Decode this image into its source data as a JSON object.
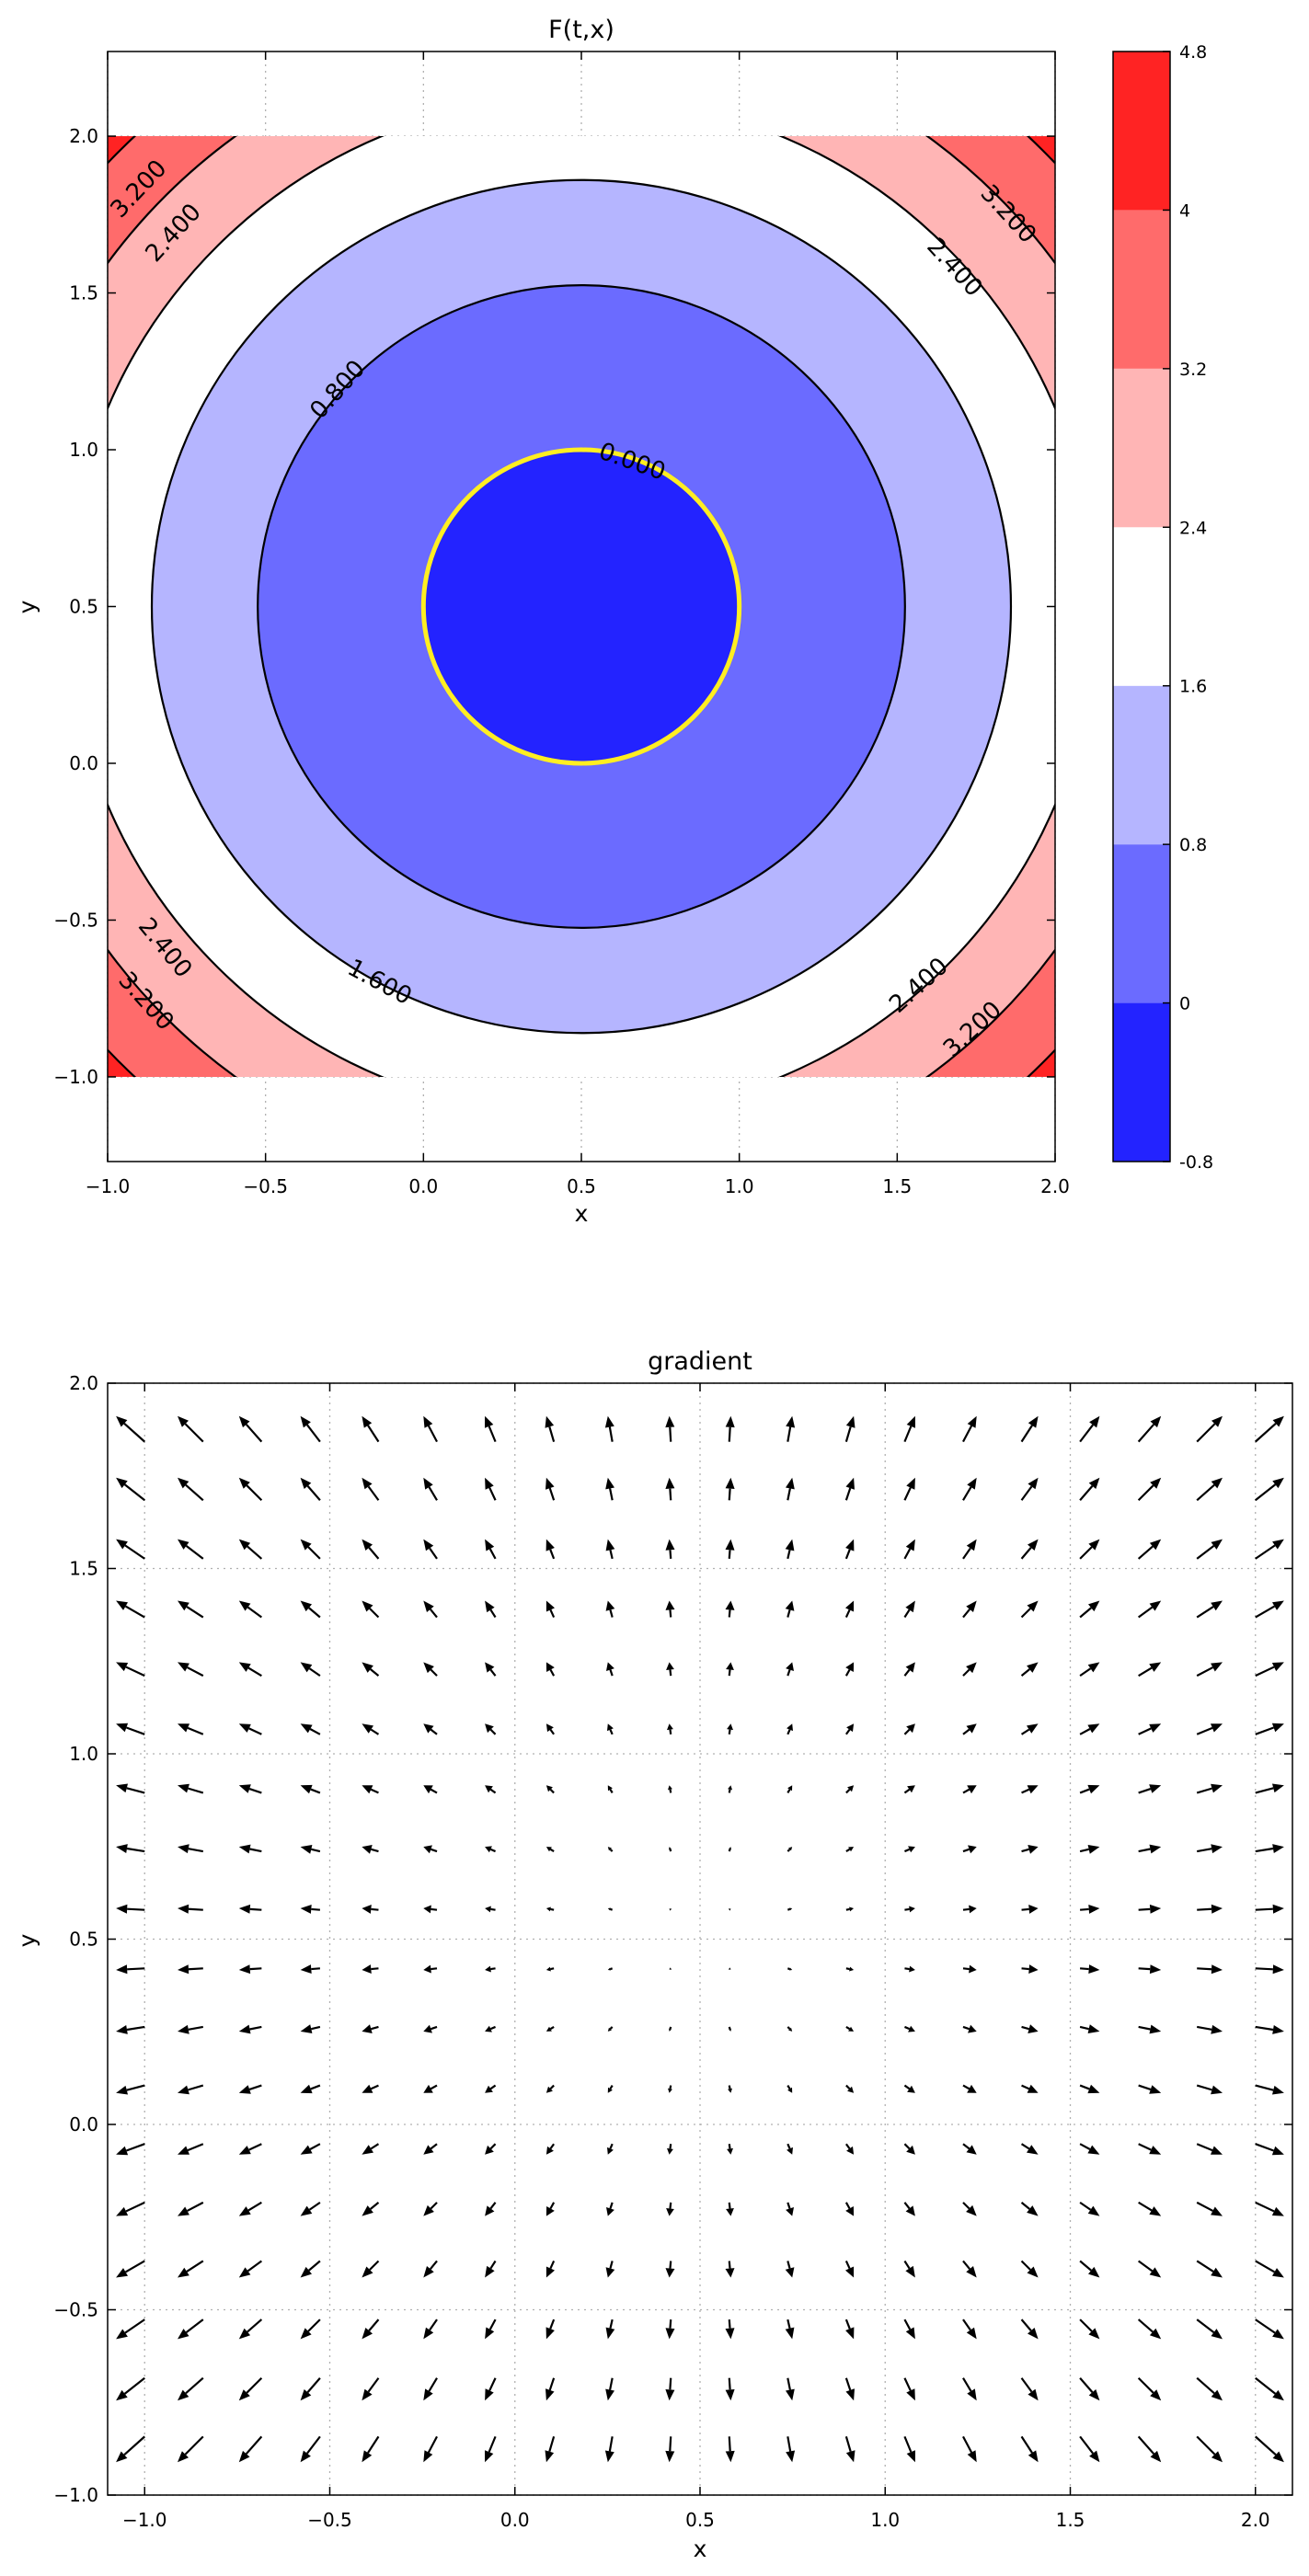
{
  "chart_data": [
    {
      "type": "contour",
      "title": "F(t,x)",
      "xlabel": "x",
      "ylabel": "y",
      "xlim": [
        -1.0,
        2.0
      ],
      "ylim": [
        -1.27,
        2.27
      ],
      "data_extent": {
        "x": [
          -1.0,
          2.0
        ],
        "y": [
          -1.0,
          2.0
        ]
      },
      "xticks": [
        -1.0,
        -0.5,
        0.0,
        0.5,
        1.0,
        1.5,
        2.0
      ],
      "yticks": [
        -1.0,
        -0.5,
        0.0,
        0.5,
        1.0,
        1.5,
        2.0
      ],
      "xtick_labels": [
        "−1.0",
        "−0.5",
        "0.0",
        "0.5",
        "1.0",
        "1.5",
        "2.0"
      ],
      "ytick_labels": [
        "−1.0",
        "−0.5",
        "0.0",
        "0.5",
        "1.0",
        "1.5",
        "2.0"
      ],
      "grid": true,
      "center": [
        0.5,
        0.5
      ],
      "levels": [
        -0.8,
        0.0,
        0.8,
        1.6,
        2.4,
        3.2,
        4.0,
        4.8
      ],
      "level_colors": [
        "#2323ff",
        "#6b6bff",
        "#b5b5ff",
        "#ffffff",
        "#ffb5b5",
        "#ff6b6b",
        "#ff2323"
      ],
      "contour_lines": [
        {
          "value": 0.0,
          "label": "0.000",
          "color": "#ffee22",
          "label_positions": [
            [
              0.66,
              0.96
            ]
          ]
        },
        {
          "value": 0.8,
          "label": "0.800",
          "color": "#000000",
          "label_positions": [
            [
              -0.27,
              1.19
            ]
          ]
        },
        {
          "value": 1.6,
          "label": "1.600",
          "color": "#000000",
          "label_positions": [
            [
              -0.14,
              -0.7
            ]
          ]
        },
        {
          "value": 2.4,
          "label": "2.400",
          "color": "#000000",
          "label_positions": [
            [
              -0.79,
              1.69
            ],
            [
              1.68,
              1.58
            ],
            [
              -0.82,
              -0.59
            ],
            [
              1.57,
              -0.71
            ]
          ]
        },
        {
          "value": 3.2,
          "label": "3.200",
          "color": "#000000",
          "label_positions": [
            [
              -0.9,
              1.83
            ],
            [
              1.85,
              1.75
            ],
            [
              -0.88,
              -0.76
            ],
            [
              1.74,
              -0.85
            ]
          ]
        },
        {
          "value": 4.0,
          "label": "",
          "color": "#000000",
          "label_positions": []
        }
      ],
      "colorbar": {
        "ticks": [
          -0.8,
          0.0,
          0.8,
          1.6,
          2.4,
          3.2,
          4.0,
          4.8
        ],
        "tick_labels": [
          "-0.8",
          "0",
          "0.8",
          "1.6",
          "2.4",
          "3.2",
          "4",
          "4.8"
        ]
      }
    },
    {
      "type": "quiver",
      "title": "gradient",
      "xlabel": "x",
      "ylabel": "y",
      "xlim": [
        -1.1,
        2.1
      ],
      "ylim": [
        -1.0,
        2.0
      ],
      "xticks": [
        -1.0,
        -0.5,
        0.0,
        0.5,
        1.0,
        1.5,
        2.0
      ],
      "yticks": [
        -1.0,
        -0.5,
        0.0,
        0.5,
        1.0,
        1.5,
        2.0
      ],
      "xtick_labels": [
        "−1.0",
        "−0.5",
        "0.0",
        "0.5",
        "1.0",
        "1.5",
        "2.0"
      ],
      "ytick_labels": [
        "−1.0",
        "−0.5",
        "0.0",
        "0.5",
        "1.0",
        "1.5",
        "2.0"
      ],
      "grid": true,
      "grid_x_range": [
        -1.0,
        2.0
      ],
      "grid_y_range": [
        -1.0,
        2.0
      ],
      "grid_count": 20,
      "center": [
        0.5,
        0.5
      ],
      "vector_field": "gradient of (x-0.5)^2 + (y-0.5)^2, pointing away from center"
    }
  ]
}
